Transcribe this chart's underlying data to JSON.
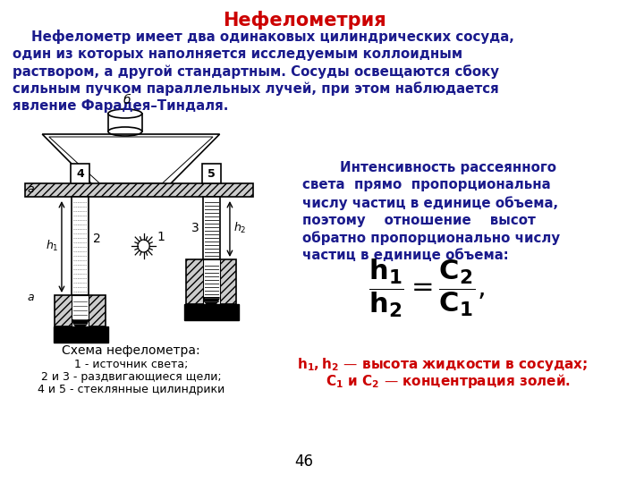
{
  "title": "Нефелометрия",
  "title_color": "#cc0000",
  "background_color": "#ffffff",
  "text_color": "#1a1a8c",
  "black_color": "#000000",
  "red_color": "#cc0000",
  "paragraph1_lines": [
    "    Нефелометр имеет два одинаковых цилиндрических сосуда,",
    "один из которых наполняется исследуемым коллоидным",
    "раствором, а другой стандартным. Сосуды освещаются сбоку",
    "сильным пучком параллельных лучей, при этом наблюдается",
    "явление Фарадея–Тиндаля."
  ],
  "paragraph2_lines": [
    "        Интенсивность рассеянного",
    "света  прямо  пропорциональна",
    "числу частиц в единице объема,",
    "поэтому    отношение    высот",
    "обратно пропорционально числу",
    "частиц в единице объема:"
  ],
  "caption_title": "Схема нефелометра:",
  "caption_lines": [
    "1 - источник света;",
    "2 и 3 - раздвигающиеся щели;",
    "4 и 5 - стеклянные цилиндрики"
  ],
  "page_number": "46"
}
